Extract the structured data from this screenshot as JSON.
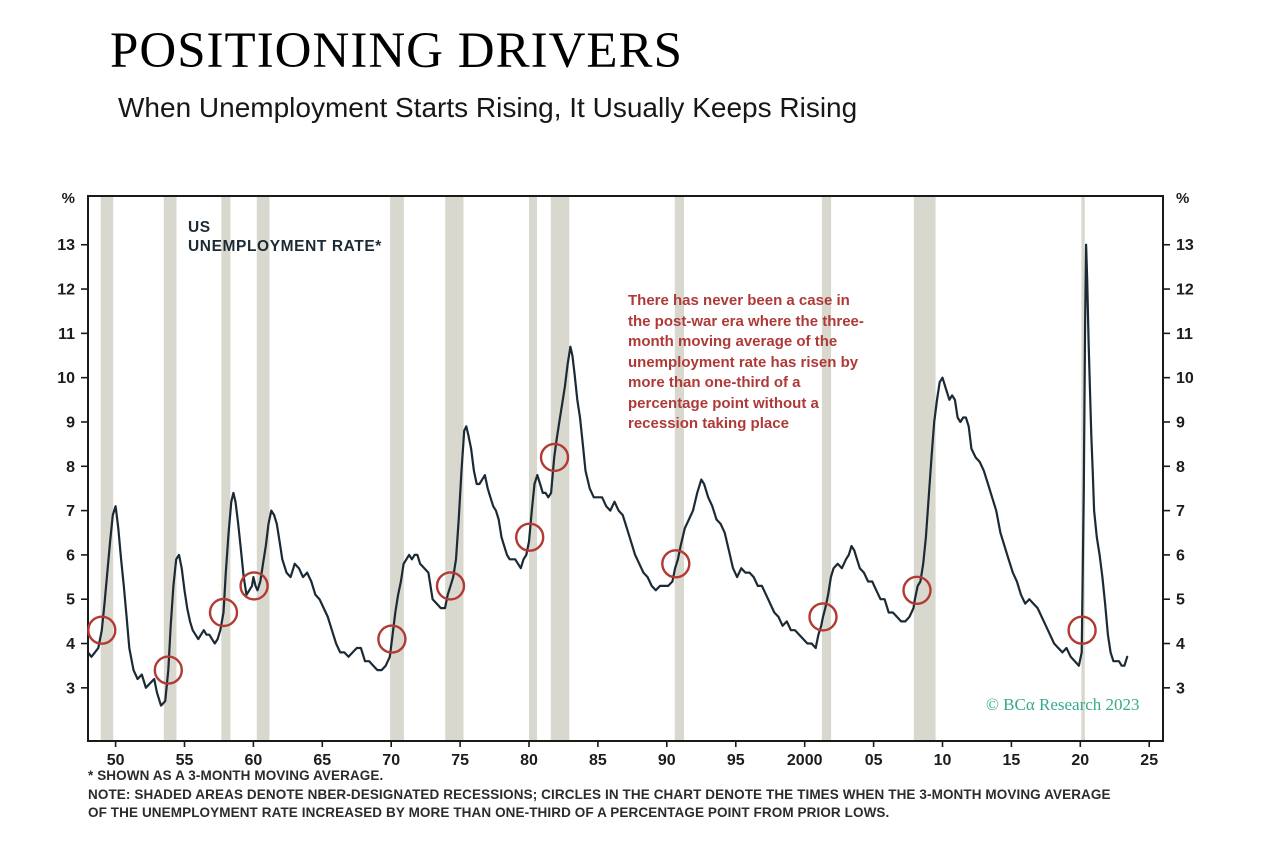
{
  "header": {
    "title": "POSITIONING DRIVERS",
    "subtitle": "When Unemployment Starts Rising, It Usually Keeps Rising"
  },
  "footnotes": [
    "* SHOWN AS A 3-MONTH MOVING AVERAGE.",
    "NOTE: SHADED AREAS DENOTE NBER-DESIGNATED RECESSIONS; CIRCLES IN THE CHART DENOTE THE TIMES WHEN THE 3-MONTH MOVING AVERAGE",
    "OF THE UNEMPLOYMENT RATE INCREASED BY MORE THAN ONE-THIRD OF A PERCENTAGE POINT FROM PRIOR LOWS."
  ],
  "chart_data": {
    "type": "line",
    "title": "US\nUNEMPLOYMENT RATE*",
    "annotation": "There has never been a case in the post-war era where the three-month moving average of the unemployment rate has risen by more than one-third of a percentage point without a recession taking place",
    "watermark": "© BCα Research 2023",
    "ylabel_left": "%",
    "ylabel_right": "%",
    "grid": false,
    "legend": "none",
    "xlim": [
      1948,
      2026
    ],
    "ylim": [
      1.8,
      14.1
    ],
    "yticks": [
      3,
      4,
      5,
      6,
      7,
      8,
      9,
      10,
      11,
      12,
      13
    ],
    "xticks": [
      {
        "x": 1950,
        "label": "50"
      },
      {
        "x": 1955,
        "label": "55"
      },
      {
        "x": 1960,
        "label": "60"
      },
      {
        "x": 1965,
        "label": "65"
      },
      {
        "x": 1970,
        "label": "70"
      },
      {
        "x": 1975,
        "label": "75"
      },
      {
        "x": 1980,
        "label": "80"
      },
      {
        "x": 1985,
        "label": "85"
      },
      {
        "x": 1990,
        "label": "90"
      },
      {
        "x": 1995,
        "label": "95"
      },
      {
        "x": 2000,
        "label": "2000"
      },
      {
        "x": 2005,
        "label": "05"
      },
      {
        "x": 2010,
        "label": "10"
      },
      {
        "x": 2015,
        "label": "15"
      },
      {
        "x": 2020,
        "label": "20"
      },
      {
        "x": 2025,
        "label": "25"
      }
    ],
    "recessions": [
      [
        1948.92,
        1949.83
      ],
      [
        1953.5,
        1954.42
      ],
      [
        1957.67,
        1958.33
      ],
      [
        1960.25,
        1961.17
      ],
      [
        1969.92,
        1970.92
      ],
      [
        1973.92,
        1975.25
      ],
      [
        1980.0,
        1980.58
      ],
      [
        1981.58,
        1982.92
      ],
      [
        1990.58,
        1991.25
      ],
      [
        2001.25,
        2001.92
      ],
      [
        2007.92,
        2009.5
      ],
      [
        2020.08,
        2020.33
      ]
    ],
    "circles": [
      [
        1949.0,
        4.3
      ],
      [
        1953.83,
        3.4
      ],
      [
        1957.83,
        4.7
      ],
      [
        1960.05,
        5.3
      ],
      [
        1970.05,
        4.1
      ],
      [
        1974.3,
        5.3
      ],
      [
        1980.05,
        6.4
      ],
      [
        1981.85,
        8.2
      ],
      [
        1990.65,
        5.8
      ],
      [
        2001.33,
        4.6
      ],
      [
        2008.15,
        5.2
      ],
      [
        2020.13,
        4.3
      ]
    ],
    "series": [
      [
        1948.0,
        3.8
      ],
      [
        1948.25,
        3.7
      ],
      [
        1948.5,
        3.8
      ],
      [
        1948.75,
        3.9
      ],
      [
        1949.0,
        4.3
      ],
      [
        1949.2,
        4.9
      ],
      [
        1949.4,
        5.6
      ],
      [
        1949.6,
        6.3
      ],
      [
        1949.8,
        6.9
      ],
      [
        1950.0,
        7.1
      ],
      [
        1950.2,
        6.6
      ],
      [
        1950.4,
        5.9
      ],
      [
        1950.6,
        5.3
      ],
      [
        1950.8,
        4.6
      ],
      [
        1951.0,
        3.9
      ],
      [
        1951.3,
        3.4
      ],
      [
        1951.6,
        3.2
      ],
      [
        1951.9,
        3.3
      ],
      [
        1952.2,
        3.0
      ],
      [
        1952.5,
        3.1
      ],
      [
        1952.8,
        3.2
      ],
      [
        1953.0,
        2.9
      ],
      [
        1953.3,
        2.6
      ],
      [
        1953.6,
        2.7
      ],
      [
        1953.83,
        3.4
      ],
      [
        1954.0,
        4.4
      ],
      [
        1954.2,
        5.3
      ],
      [
        1954.4,
        5.9
      ],
      [
        1954.6,
        6.0
      ],
      [
        1954.8,
        5.7
      ],
      [
        1955.0,
        5.2
      ],
      [
        1955.2,
        4.8
      ],
      [
        1955.4,
        4.5
      ],
      [
        1955.6,
        4.3
      ],
      [
        1955.8,
        4.2
      ],
      [
        1956.0,
        4.1
      ],
      [
        1956.2,
        4.2
      ],
      [
        1956.4,
        4.3
      ],
      [
        1956.6,
        4.2
      ],
      [
        1956.8,
        4.2
      ],
      [
        1957.0,
        4.1
      ],
      [
        1957.2,
        4.0
      ],
      [
        1957.4,
        4.1
      ],
      [
        1957.6,
        4.3
      ],
      [
        1957.83,
        4.7
      ],
      [
        1958.0,
        5.6
      ],
      [
        1958.2,
        6.5
      ],
      [
        1958.4,
        7.2
      ],
      [
        1958.55,
        7.4
      ],
      [
        1958.7,
        7.2
      ],
      [
        1958.9,
        6.7
      ],
      [
        1959.1,
        6.1
      ],
      [
        1959.3,
        5.5
      ],
      [
        1959.5,
        5.1
      ],
      [
        1959.7,
        5.2
      ],
      [
        1959.9,
        5.3
      ],
      [
        1960.0,
        5.5
      ],
      [
        1960.15,
        5.3
      ],
      [
        1960.3,
        5.2
      ],
      [
        1960.5,
        5.4
      ],
      [
        1960.7,
        5.8
      ],
      [
        1960.9,
        6.2
      ],
      [
        1961.1,
        6.7
      ],
      [
        1961.3,
        7.0
      ],
      [
        1961.5,
        6.9
      ],
      [
        1961.7,
        6.7
      ],
      [
        1961.9,
        6.3
      ],
      [
        1962.1,
        5.9
      ],
      [
        1962.4,
        5.6
      ],
      [
        1962.7,
        5.5
      ],
      [
        1963.0,
        5.8
      ],
      [
        1963.3,
        5.7
      ],
      [
        1963.6,
        5.5
      ],
      [
        1963.9,
        5.6
      ],
      [
        1964.2,
        5.4
      ],
      [
        1964.5,
        5.1
      ],
      [
        1964.8,
        5.0
      ],
      [
        1965.1,
        4.8
      ],
      [
        1965.4,
        4.6
      ],
      [
        1965.7,
        4.3
      ],
      [
        1966.0,
        4.0
      ],
      [
        1966.3,
        3.8
      ],
      [
        1966.6,
        3.8
      ],
      [
        1966.9,
        3.7
      ],
      [
        1967.2,
        3.8
      ],
      [
        1967.5,
        3.9
      ],
      [
        1967.8,
        3.9
      ],
      [
        1968.1,
        3.6
      ],
      [
        1968.4,
        3.6
      ],
      [
        1968.7,
        3.5
      ],
      [
        1969.0,
        3.4
      ],
      [
        1969.3,
        3.4
      ],
      [
        1969.6,
        3.5
      ],
      [
        1969.9,
        3.7
      ],
      [
        1970.1,
        4.2
      ],
      [
        1970.3,
        4.7
      ],
      [
        1970.5,
        5.1
      ],
      [
        1970.7,
        5.4
      ],
      [
        1970.9,
        5.8
      ],
      [
        1971.1,
        5.9
      ],
      [
        1971.3,
        6.0
      ],
      [
        1971.5,
        5.9
      ],
      [
        1971.7,
        6.0
      ],
      [
        1971.9,
        6.0
      ],
      [
        1972.1,
        5.8
      ],
      [
        1972.4,
        5.7
      ],
      [
        1972.7,
        5.6
      ],
      [
        1973.0,
        5.0
      ],
      [
        1973.3,
        4.9
      ],
      [
        1973.6,
        4.8
      ],
      [
        1973.9,
        4.8
      ],
      [
        1974.1,
        5.1
      ],
      [
        1974.3,
        5.3
      ],
      [
        1974.5,
        5.5
      ],
      [
        1974.7,
        5.9
      ],
      [
        1974.9,
        6.8
      ],
      [
        1975.1,
        7.9
      ],
      [
        1975.3,
        8.8
      ],
      [
        1975.45,
        8.9
      ],
      [
        1975.6,
        8.7
      ],
      [
        1975.8,
        8.4
      ],
      [
        1976.0,
        7.9
      ],
      [
        1976.2,
        7.6
      ],
      [
        1976.4,
        7.6
      ],
      [
        1976.6,
        7.7
      ],
      [
        1976.8,
        7.8
      ],
      [
        1977.0,
        7.5
      ],
      [
        1977.2,
        7.3
      ],
      [
        1977.4,
        7.1
      ],
      [
        1977.6,
        7.0
      ],
      [
        1977.8,
        6.8
      ],
      [
        1978.0,
        6.4
      ],
      [
        1978.2,
        6.2
      ],
      [
        1978.4,
        6.0
      ],
      [
        1978.6,
        5.9
      ],
      [
        1978.8,
        5.9
      ],
      [
        1979.0,
        5.9
      ],
      [
        1979.2,
        5.8
      ],
      [
        1979.4,
        5.7
      ],
      [
        1979.6,
        5.9
      ],
      [
        1979.8,
        6.0
      ],
      [
        1980.0,
        6.3
      ],
      [
        1980.2,
        7.0
      ],
      [
        1980.4,
        7.6
      ],
      [
        1980.6,
        7.8
      ],
      [
        1980.8,
        7.6
      ],
      [
        1981.0,
        7.4
      ],
      [
        1981.2,
        7.4
      ],
      [
        1981.4,
        7.3
      ],
      [
        1981.6,
        7.4
      ],
      [
        1981.83,
        8.2
      ],
      [
        1982.0,
        8.6
      ],
      [
        1982.2,
        9.0
      ],
      [
        1982.4,
        9.4
      ],
      [
        1982.6,
        9.8
      ],
      [
        1982.8,
        10.3
      ],
      [
        1983.0,
        10.7
      ],
      [
        1983.15,
        10.5
      ],
      [
        1983.3,
        10.1
      ],
      [
        1983.5,
        9.5
      ],
      [
        1983.7,
        9.1
      ],
      [
        1983.9,
        8.5
      ],
      [
        1984.1,
        7.9
      ],
      [
        1984.4,
        7.5
      ],
      [
        1984.7,
        7.3
      ],
      [
        1985.0,
        7.3
      ],
      [
        1985.3,
        7.3
      ],
      [
        1985.6,
        7.1
      ],
      [
        1985.9,
        7.0
      ],
      [
        1986.2,
        7.2
      ],
      [
        1986.5,
        7.0
      ],
      [
        1986.8,
        6.9
      ],
      [
        1987.1,
        6.6
      ],
      [
        1987.4,
        6.3
      ],
      [
        1987.7,
        6.0
      ],
      [
        1988.0,
        5.8
      ],
      [
        1988.3,
        5.6
      ],
      [
        1988.6,
        5.5
      ],
      [
        1988.9,
        5.3
      ],
      [
        1989.2,
        5.2
      ],
      [
        1989.5,
        5.3
      ],
      [
        1989.8,
        5.3
      ],
      [
        1990.1,
        5.3
      ],
      [
        1990.4,
        5.4
      ],
      [
        1990.6,
        5.7
      ],
      [
        1990.8,
        5.9
      ],
      [
        1991.0,
        6.2
      ],
      [
        1991.3,
        6.6
      ],
      [
        1991.6,
        6.8
      ],
      [
        1991.9,
        7.0
      ],
      [
        1992.2,
        7.4
      ],
      [
        1992.5,
        7.7
      ],
      [
        1992.7,
        7.6
      ],
      [
        1993.0,
        7.3
      ],
      [
        1993.3,
        7.1
      ],
      [
        1993.6,
        6.8
      ],
      [
        1993.9,
        6.7
      ],
      [
        1994.2,
        6.5
      ],
      [
        1994.5,
        6.1
      ],
      [
        1994.8,
        5.7
      ],
      [
        1995.1,
        5.5
      ],
      [
        1995.4,
        5.7
      ],
      [
        1995.7,
        5.6
      ],
      [
        1996.0,
        5.6
      ],
      [
        1996.3,
        5.5
      ],
      [
        1996.6,
        5.3
      ],
      [
        1996.9,
        5.3
      ],
      [
        1997.2,
        5.1
      ],
      [
        1997.5,
        4.9
      ],
      [
        1997.8,
        4.7
      ],
      [
        1998.1,
        4.6
      ],
      [
        1998.4,
        4.4
      ],
      [
        1998.7,
        4.5
      ],
      [
        1999.0,
        4.3
      ],
      [
        1999.3,
        4.3
      ],
      [
        1999.6,
        4.2
      ],
      [
        1999.9,
        4.1
      ],
      [
        2000.2,
        4.0
      ],
      [
        2000.5,
        4.0
      ],
      [
        2000.8,
        3.9
      ],
      [
        2001.0,
        4.2
      ],
      [
        2001.2,
        4.4
      ],
      [
        2001.33,
        4.6
      ],
      [
        2001.5,
        4.8
      ],
      [
        2001.7,
        5.1
      ],
      [
        2001.9,
        5.5
      ],
      [
        2002.1,
        5.7
      ],
      [
        2002.4,
        5.8
      ],
      [
        2002.7,
        5.7
      ],
      [
        2003.0,
        5.9
      ],
      [
        2003.2,
        6.0
      ],
      [
        2003.4,
        6.2
      ],
      [
        2003.6,
        6.1
      ],
      [
        2003.8,
        5.9
      ],
      [
        2004.0,
        5.7
      ],
      [
        2004.3,
        5.6
      ],
      [
        2004.6,
        5.4
      ],
      [
        2004.9,
        5.4
      ],
      [
        2005.2,
        5.2
      ],
      [
        2005.5,
        5.0
      ],
      [
        2005.8,
        5.0
      ],
      [
        2006.1,
        4.7
      ],
      [
        2006.4,
        4.7
      ],
      [
        2006.7,
        4.6
      ],
      [
        2007.0,
        4.5
      ],
      [
        2007.3,
        4.5
      ],
      [
        2007.6,
        4.6
      ],
      [
        2007.9,
        4.8
      ],
      [
        2008.0,
        5.0
      ],
      [
        2008.2,
        5.3
      ],
      [
        2008.4,
        5.4
      ],
      [
        2008.6,
        5.8
      ],
      [
        2008.8,
        6.4
      ],
      [
        2009.0,
        7.3
      ],
      [
        2009.2,
        8.2
      ],
      [
        2009.4,
        9.0
      ],
      [
        2009.6,
        9.5
      ],
      [
        2009.8,
        9.9
      ],
      [
        2010.0,
        10.0
      ],
      [
        2010.3,
        9.7
      ],
      [
        2010.5,
        9.5
      ],
      [
        2010.7,
        9.6
      ],
      [
        2010.9,
        9.5
      ],
      [
        2011.1,
        9.1
      ],
      [
        2011.3,
        9.0
      ],
      [
        2011.5,
        9.1
      ],
      [
        2011.7,
        9.1
      ],
      [
        2011.9,
        8.9
      ],
      [
        2012.1,
        8.4
      ],
      [
        2012.4,
        8.2
      ],
      [
        2012.7,
        8.1
      ],
      [
        2013.0,
        7.9
      ],
      [
        2013.3,
        7.6
      ],
      [
        2013.6,
        7.3
      ],
      [
        2013.9,
        7.0
      ],
      [
        2014.2,
        6.5
      ],
      [
        2014.5,
        6.2
      ],
      [
        2014.8,
        5.9
      ],
      [
        2015.1,
        5.6
      ],
      [
        2015.4,
        5.4
      ],
      [
        2015.7,
        5.1
      ],
      [
        2016.0,
        4.9
      ],
      [
        2016.3,
        5.0
      ],
      [
        2016.6,
        4.9
      ],
      [
        2016.9,
        4.8
      ],
      [
        2017.2,
        4.6
      ],
      [
        2017.5,
        4.4
      ],
      [
        2017.8,
        4.2
      ],
      [
        2018.1,
        4.0
      ],
      [
        2018.4,
        3.9
      ],
      [
        2018.7,
        3.8
      ],
      [
        2019.0,
        3.9
      ],
      [
        2019.3,
        3.7
      ],
      [
        2019.6,
        3.6
      ],
      [
        2019.9,
        3.5
      ],
      [
        2020.1,
        3.8
      ],
      [
        2020.25,
        7.5
      ],
      [
        2020.35,
        11.2
      ],
      [
        2020.42,
        13.0
      ],
      [
        2020.5,
        12.2
      ],
      [
        2020.6,
        10.8
      ],
      [
        2020.7,
        9.7
      ],
      [
        2020.8,
        8.7
      ],
      [
        2020.9,
        7.9
      ],
      [
        2021.0,
        7.0
      ],
      [
        2021.2,
        6.4
      ],
      [
        2021.4,
        6.0
      ],
      [
        2021.6,
        5.5
      ],
      [
        2021.8,
        4.9
      ],
      [
        2022.0,
        4.2
      ],
      [
        2022.2,
        3.8
      ],
      [
        2022.4,
        3.6
      ],
      [
        2022.6,
        3.6
      ],
      [
        2022.8,
        3.6
      ],
      [
        2023.0,
        3.5
      ],
      [
        2023.2,
        3.5
      ],
      [
        2023.4,
        3.7
      ]
    ],
    "colors": {
      "line": "#1b2a34",
      "recession_band": "#d9d8cf",
      "circle": "#b23a33",
      "annotation": "#ae3a38",
      "watermark": "#36a98e",
      "frame": "#1a1a1a",
      "axis_text": "#1c1c1c"
    }
  }
}
